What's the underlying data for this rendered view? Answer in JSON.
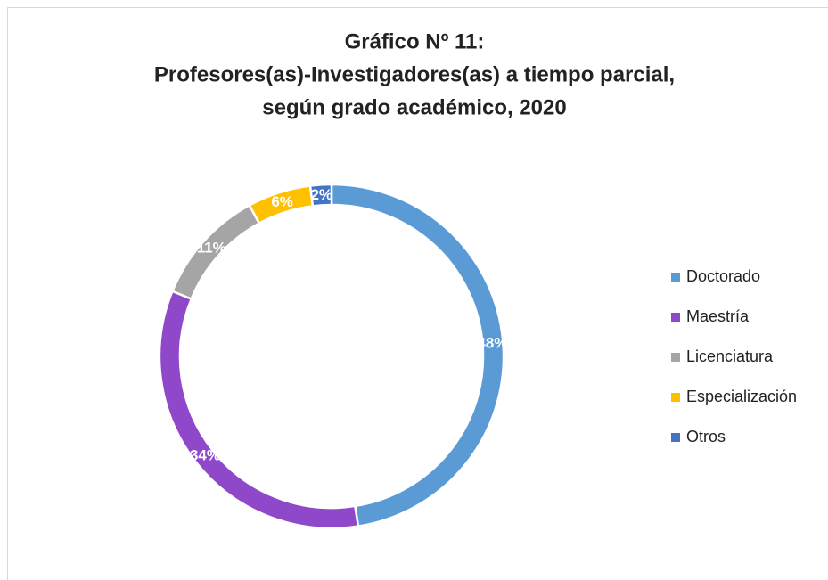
{
  "chart_data": {
    "type": "donut",
    "title": [
      "Gráfico Nº 11:",
      "Profesores(as)-Investigadores(as) a tiempo parcial,",
      "según grado académico, 2020"
    ],
    "categories": [
      "Doctorado",
      "Maestría",
      "Licenciatura",
      "Especialización",
      "Otros"
    ],
    "values": [
      48,
      34,
      11,
      6,
      2
    ],
    "value_labels": [
      "48%",
      "34%",
      "11%",
      "6%",
      "2%"
    ],
    "colors": [
      "#5b9bd5",
      "#8e48c9",
      "#a5a5a5",
      "#ffc000",
      "#4472c4"
    ],
    "legend": "right"
  }
}
